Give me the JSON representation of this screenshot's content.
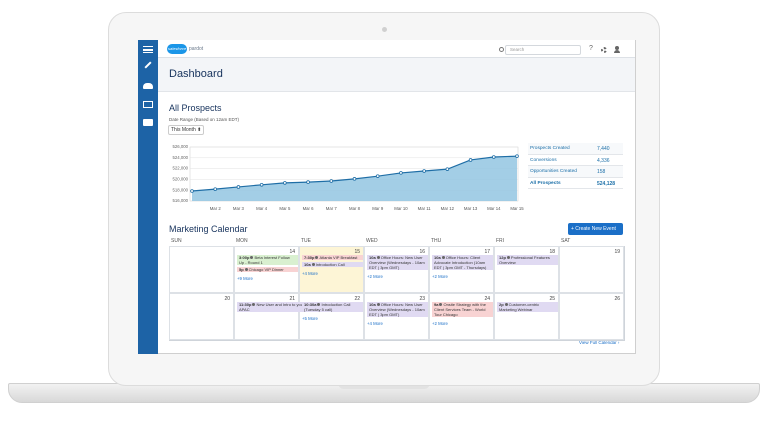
{
  "app": {
    "brand": "salesforce",
    "product": "pardot",
    "search": "Search",
    "help": "?"
  },
  "header": {
    "title": "Dashboard"
  },
  "section": {
    "title": "All Prospects",
    "date_range": "Date Range (Based on 12am EDT)",
    "period": "This Month ⬍"
  },
  "chart_data": {
    "type": "area",
    "categories": [
      null,
      "Mar 2",
      "Mar 3",
      "Mar 4",
      "Mar 5",
      "Mar 6",
      "Mar 7",
      "Mar 8",
      "Mar 9",
      "Mar 10",
      "Mar 11",
      "Mar 12",
      "Mar 13",
      "Mar 14",
      "Mar 15"
    ],
    "values": [
      517850,
      518200,
      518600,
      519000,
      519350,
      519500,
      519700,
      520100,
      520600,
      521200,
      521550,
      521900,
      523600,
      524150,
      524300
    ],
    "color": "#1f6ea6",
    "fill": "#93c6e2",
    "ylim": [
      516000,
      526000
    ],
    "yticks": [
      {
        "value": 516000,
        "label": "516,000"
      },
      {
        "value": 518000,
        "label": "518,000"
      },
      {
        "value": 520000,
        "label": "520,000"
      },
      {
        "value": 522000,
        "label": "522,000"
      },
      {
        "value": 524000,
        "label": "524,000"
      },
      {
        "value": 526000,
        "label": "526,000"
      }
    ],
    "grid": true
  },
  "stats": [
    {
      "label": "Prospects Created",
      "value": "7,440"
    },
    {
      "label": "Conversions",
      "value": "4,336"
    },
    {
      "label": "Opportunities Created",
      "value": "158"
    },
    {
      "label": "All Prospects",
      "value": "524,128",
      "bold": true
    }
  ],
  "calendar": {
    "title": "Marketing Calendar",
    "button": "+ Create New Event",
    "weekdays": [
      "SUN",
      "MON",
      "TUE",
      "WED",
      "THU",
      "FRI",
      "SAT"
    ],
    "weeks": [
      [
        {},
        {
          "day": 14,
          "events": [
            {
              "time": "3:00p",
              "title": "Beta Interest Follow Up - Round 1",
              "color": "#d9f0d0"
            },
            {
              "time": "5p",
              "title": "Chicago VIP Dinner",
              "color": "#f8d3d3"
            }
          ],
          "more": "+9 More"
        },
        {
          "day": 15,
          "today": true,
          "events": [
            {
              "time": "7:30p",
              "title": "Atlanta VIP Breakfast",
              "color": "#f8d3d3"
            },
            {
              "time": "10a",
              "title": "Introduction Call",
              "color": "#e0daf2"
            }
          ],
          "more": "+4 More"
        },
        {
          "day": 16,
          "events": [
            {
              "time": "10a",
              "title": "Office Hours: New User Overview (Wednesdays - 10am EDT | 3pm GMT)",
              "color": "#e0daf2"
            }
          ],
          "more": "+2 More"
        },
        {
          "day": 17,
          "events": [
            {
              "time": "10a",
              "title": "Office Hours: Client Advocate Introduction (10am EDT | 3pm GMT - Thursdays)",
              "color": "#e0daf2"
            }
          ],
          "more": "+2 More"
        },
        {
          "day": 18,
          "events": [
            {
              "time": "12p",
              "title": "Professional Features Overview",
              "color": "#e0daf2"
            }
          ]
        },
        {
          "day": 19
        }
      ],
      [
        {
          "day": 20
        },
        {
          "day": 21,
          "events": [
            {
              "time": "11:30p",
              "title": "New User and Intro to your Customer Success team: APAC",
              "color": "#e0daf2",
              "span": 2
            }
          ]
        },
        {
          "day": 22,
          "events": [
            {
              "time": "10:30a",
              "title": "Introduction Call (Tuesday 5 call)",
              "color": "#e0daf2"
            }
          ],
          "more": "+5 More"
        },
        {
          "day": 23,
          "events": [
            {
              "time": "10a",
              "title": "Office Hours: New User Overview (Wednesdays - 10am EDT | 3pm GMT)",
              "color": "#e0daf2"
            }
          ],
          "more": "+4 More"
        },
        {
          "day": 24,
          "events": [
            {
              "time": "9a",
              "title": "Onsite Strategy with the Client Services Team - World Tour Chicago",
              "color": "#f8d3d3"
            }
          ],
          "more": "+2 More"
        },
        {
          "day": 25,
          "events": [
            {
              "time": "2p",
              "title": "Customer-centric Marketing Webinar",
              "color": "#e0daf2"
            }
          ]
        },
        {
          "day": 26
        }
      ]
    ],
    "footer": "View Full Calendar ›"
  }
}
